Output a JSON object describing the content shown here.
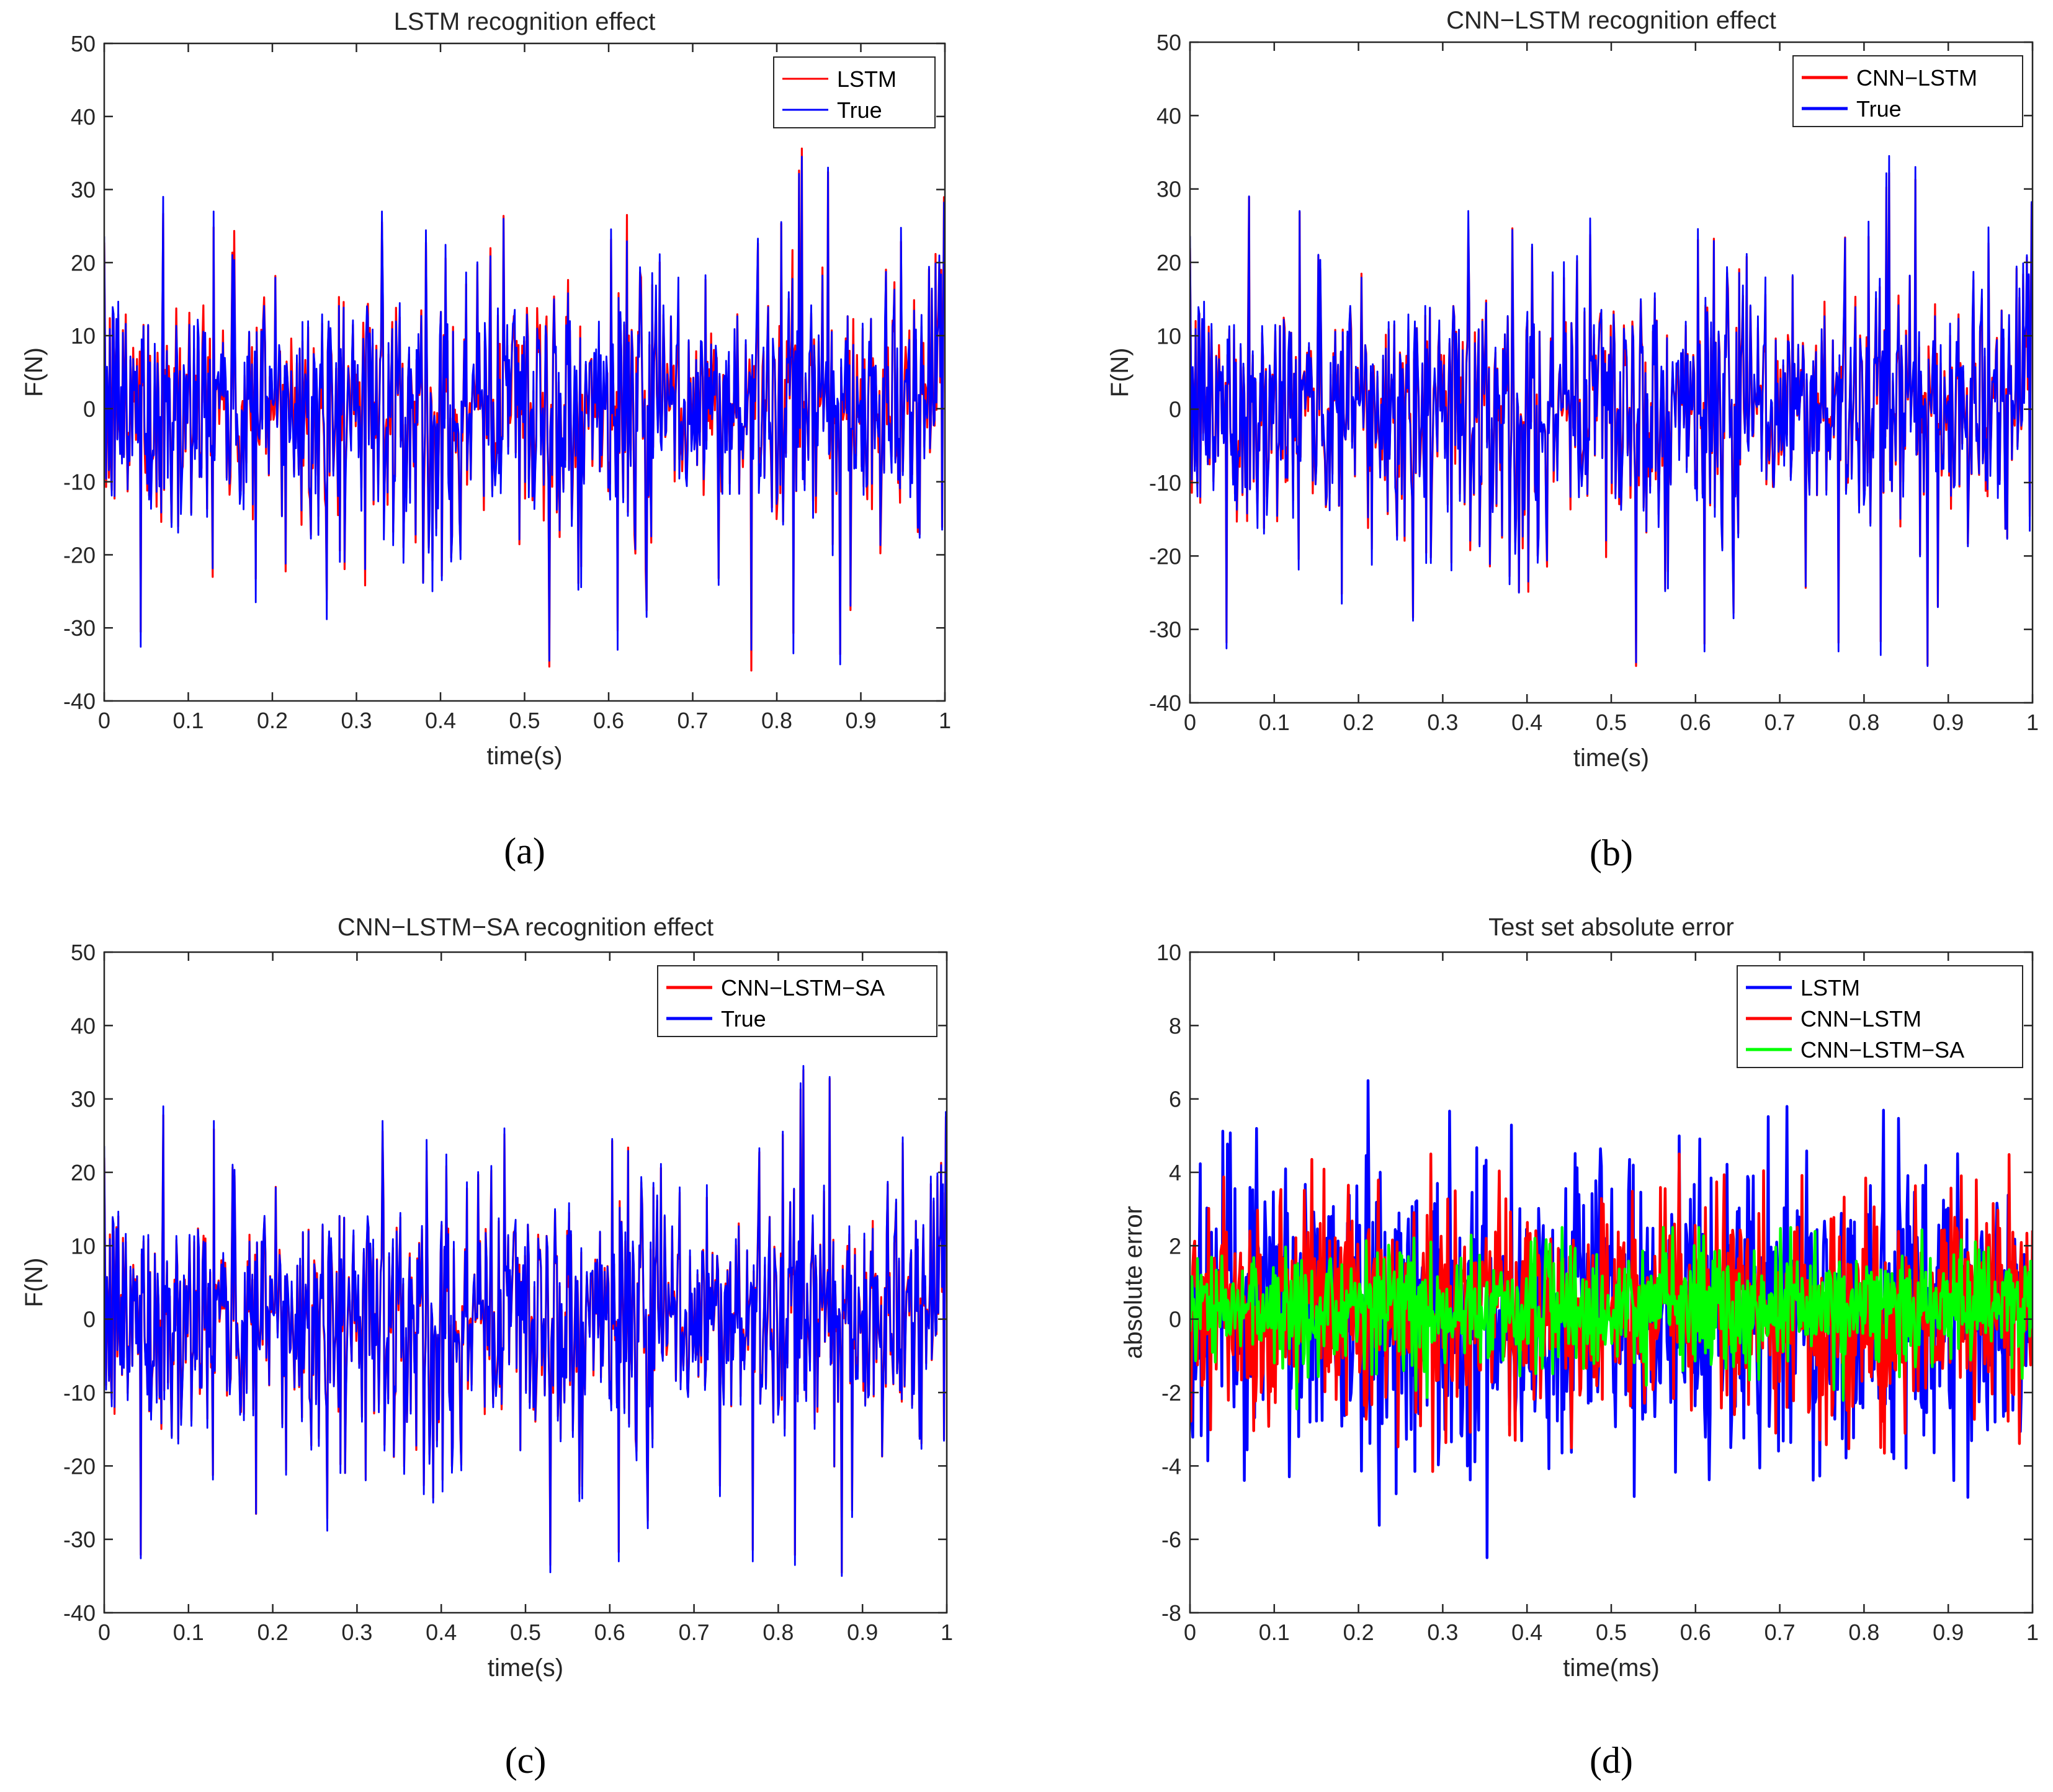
{
  "colors": {
    "lstm": "#ff0000",
    "true": "#0000ff",
    "lstm_d": "#0000ff",
    "cnn_lstm_d": "#ff0000",
    "cnn_lstm_sa_d": "#00ff00",
    "axis": "#262626"
  },
  "chart_data": [
    {
      "type": "line",
      "panel": "a",
      "caption": "(a)",
      "title": "LSTM recognition effect",
      "xlabel": "time(s)",
      "ylabel": "F(N)",
      "xlim": [
        0,
        1
      ],
      "ylim": [
        -40,
        50
      ],
      "xticks": [
        0,
        0.1,
        0.2,
        0.3,
        0.4,
        0.5,
        0.6,
        0.7,
        0.8,
        0.9,
        1
      ],
      "xtick_labels": [
        "0",
        "0.1",
        "0.2",
        "0.3",
        "0.4",
        "0.5",
        "0.6",
        "0.7",
        "0.8",
        "0.9",
        "1"
      ],
      "yticks": [
        -40,
        -30,
        -20,
        -10,
        0,
        10,
        20,
        30,
        40,
        50
      ],
      "ytick_labels": [
        "-40",
        "-30",
        "-20",
        "-10",
        "0",
        "10",
        "20",
        "30",
        "40",
        "50"
      ],
      "legend_position": "top-right",
      "series": [
        {
          "name": "LSTM",
          "color": "#ff0000",
          "role": "pred"
        },
        {
          "name": "True",
          "color": "#0000ff",
          "role": "true"
        }
      ]
    },
    {
      "type": "line",
      "panel": "b",
      "caption": "(b)",
      "title": "CNN−LSTM recognition effect",
      "xlabel": "time(s)",
      "ylabel": "F(N)",
      "xlim": [
        0,
        1
      ],
      "ylim": [
        -40,
        50
      ],
      "xticks": [
        0,
        0.1,
        0.2,
        0.3,
        0.4,
        0.5,
        0.6,
        0.7,
        0.8,
        0.9,
        1
      ],
      "xtick_labels": [
        "0",
        "0.1",
        "0.2",
        "0.3",
        "0.4",
        "0.5",
        "0.6",
        "0.7",
        "0.8",
        "0.9",
        "1"
      ],
      "yticks": [
        -40,
        -30,
        -20,
        -10,
        0,
        10,
        20,
        30,
        40,
        50
      ],
      "ytick_labels": [
        "-40",
        "-30",
        "-20",
        "-10",
        "0",
        "10",
        "20",
        "30",
        "40",
        "50"
      ],
      "legend_position": "top-right",
      "series": [
        {
          "name": "CNN−LSTM",
          "color": "#ff0000",
          "role": "pred"
        },
        {
          "name": "True",
          "color": "#0000ff",
          "role": "true"
        }
      ]
    },
    {
      "type": "line",
      "panel": "c",
      "caption": "(c)",
      "title": "CNN−LSTM−SA recognition effect",
      "xlabel": "time(s)",
      "ylabel": "F(N)",
      "xlim": [
        0,
        1
      ],
      "ylim": [
        -40,
        50
      ],
      "xticks": [
        0,
        0.1,
        0.2,
        0.3,
        0.4,
        0.5,
        0.6,
        0.7,
        0.8,
        0.9,
        1
      ],
      "xtick_labels": [
        "0",
        "0.1",
        "0.2",
        "0.3",
        "0.4",
        "0.5",
        "0.6",
        "0.7",
        "0.8",
        "0.9",
        "1"
      ],
      "yticks": [
        -40,
        -30,
        -20,
        -10,
        0,
        10,
        20,
        30,
        40,
        50
      ],
      "ytick_labels": [
        "-40",
        "-30",
        "-20",
        "-10",
        "0",
        "10",
        "20",
        "30",
        "40",
        "50"
      ],
      "legend_position": "top-right",
      "series": [
        {
          "name": "CNN−LSTM−SA",
          "color": "#ff0000",
          "role": "pred"
        },
        {
          "name": "True",
          "color": "#0000ff",
          "role": "true"
        }
      ]
    },
    {
      "type": "line",
      "panel": "d",
      "caption": "(d)",
      "title": "Test set absolute error",
      "xlabel": "time(ms)",
      "ylabel": "absolute error",
      "xlim": [
        0,
        1
      ],
      "ylim": [
        -8,
        10
      ],
      "xticks": [
        0,
        0.1,
        0.2,
        0.3,
        0.4,
        0.5,
        0.6,
        0.7,
        0.8,
        0.9,
        1
      ],
      "xtick_labels": [
        "0",
        "0.1",
        "0.2",
        "0.3",
        "0.4",
        "0.5",
        "0.6",
        "0.7",
        "0.8",
        "0.9",
        "1"
      ],
      "yticks": [
        -8,
        -6,
        -4,
        -2,
        0,
        2,
        4,
        6,
        8,
        10
      ],
      "ytick_labels": [
        "-8",
        "-6",
        "-4",
        "-2",
        "0",
        "2",
        "4",
        "6",
        "8",
        "10"
      ],
      "legend_position": "top-right",
      "series": [
        {
          "name": "LSTM",
          "color": "#0000ff",
          "role": "err",
          "amplitude": 6.5
        },
        {
          "name": "CNN−LSTM",
          "color": "#ff0000",
          "role": "err",
          "amplitude": 4.5
        },
        {
          "name": "CNN−LSTM−SA",
          "color": "#00ff00",
          "role": "err",
          "amplitude": 2.5
        }
      ]
    }
  ]
}
